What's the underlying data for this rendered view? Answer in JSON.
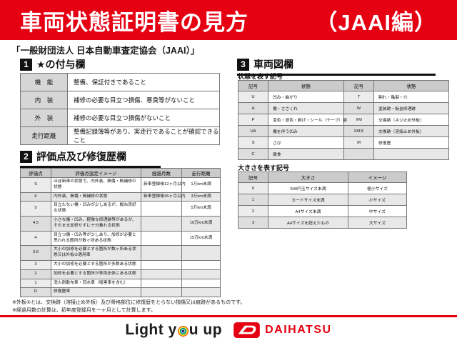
{
  "banner": {
    "title": "車両状態証明書の見方",
    "edition": "（JAAI編）",
    "bg_color": "#e50012",
    "text_color": "#ffffff"
  },
  "subtitle": "「一般財団法人 日本自動車査定協会（JAAI）」",
  "sections": {
    "star": {
      "number": "1",
      "title": "★の付与欄",
      "rows": [
        [
          "機　能",
          "整備、保証付きであること"
        ],
        [
          "内　装",
          "補修の必要な目立つ損傷、悪臭等がないこと"
        ],
        [
          "外　装",
          "補修の必要な目立つ損傷がないこと"
        ],
        [
          "走行距離",
          "整備記録簿等があり、実走行であることが確認できること"
        ]
      ]
    },
    "grade": {
      "number": "2",
      "title": "評価点及び修復歴欄",
      "headers": [
        "評価点",
        "評価点設定イメージ",
        "経過月数",
        "走行距離"
      ],
      "rows": [
        [
          "S",
          "ほぼ新車の状態で、内外装、無傷・無補修の状態",
          "新車登録後12ヶ月以内",
          "1万km未満"
        ],
        [
          "6",
          "内外装、無傷・無補修の状態",
          "新車登録後36ヶ月以内",
          "3万km未満"
        ],
        [
          "5",
          "目立たない傷・凹みが少しあるが、概ね良好な状態",
          "",
          "5万km未満"
        ],
        [
          "4.5",
          "小さな傷・凹み、軽微な修理跡等があるが、そのまま加修せずに十分乗れる状態",
          "",
          "10万km未満"
        ],
        [
          "4",
          "目立つ傷・凹み等が少しあり、加修が必要と思われる箇所が数ヶ所ある状態",
          "",
          "15万km未満"
        ],
        [
          "3.5",
          "大小の加修を必要とする箇所が数ヶ所ある状態又は外板②適用車",
          "",
          ""
        ],
        [
          "3",
          "大小の加修を必要とする箇所が多数ある状態",
          "",
          ""
        ],
        [
          "2",
          "加修を必要とする箇所が車両全体にある状態",
          "",
          ""
        ],
        [
          "1",
          "消火剤散布車・冠水車（塩害車を含む）",
          "",
          ""
        ],
        [
          "R",
          "修復歴車",
          "",
          ""
        ]
      ]
    },
    "diagram": {
      "number": "3",
      "title": "車両図欄",
      "state_label": "状態を表す記号",
      "state_headers": [
        "記号",
        "状態",
        "記号",
        "状態"
      ],
      "state_rows": [
        [
          "U",
          "凹み・曲がり",
          "T",
          "割れ・亀裂・穴"
        ],
        [
          "A",
          "傷・ささくれ",
          "W",
          "塗装跡・板金修理跡"
        ],
        [
          "P",
          "変色・退色・剥げ・シール（テープ）跡",
          "XM",
          "交換跡（ネジ止め外板）"
        ],
        [
          "UA",
          "傷を伴う凹み",
          "XM②",
          "交換跡（溶接止め外板）"
        ],
        [
          "S",
          "さび",
          "M",
          "修復歴"
        ],
        [
          "C",
          "腐食",
          "",
          ""
        ]
      ],
      "size_label": "大きさを表す記号",
      "size_headers": [
        "記号",
        "大きさ",
        "イメージ"
      ],
      "size_rows": [
        [
          "0",
          "500円玉サイズ未満",
          "極小サイズ"
        ],
        [
          "1",
          "カードサイズ未満",
          "小サイズ"
        ],
        [
          "2",
          "A4サイズ未満",
          "中サイズ"
        ],
        [
          "3",
          "A4サイズを超えたもの",
          "大サイズ"
        ]
      ]
    }
  },
  "footnotes": [
    "※外板②とは、交換跡（溶接止め外板）及び骨格部位に修復歴をとらない損傷又は痕跡があるものです。",
    "※経過月数の計算は、初年度登録月を一ヶ月として計算します。"
  ],
  "footer": {
    "slogan_part1": "Light y",
    "slogan_part2": "u up",
    "brand": "DAIHATSU",
    "brand_color": "#e50012"
  }
}
